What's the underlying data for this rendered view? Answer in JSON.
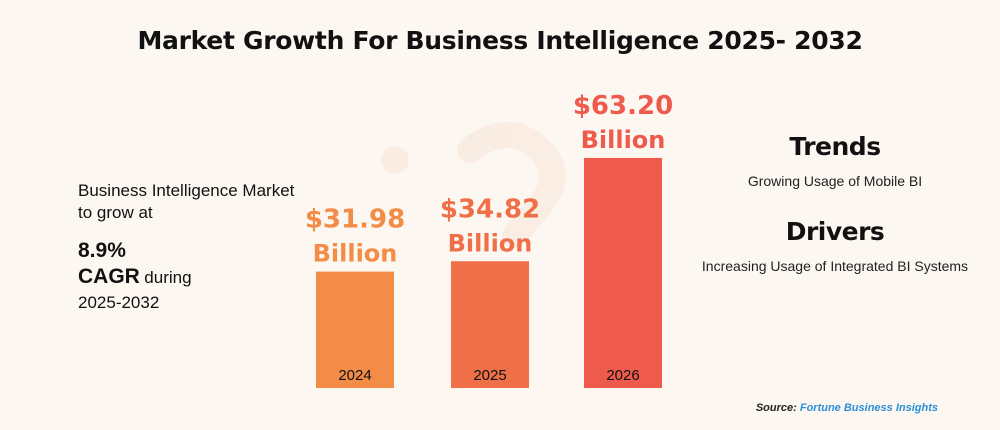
{
  "title": "Market Growth For Business Intelligence 2025- 2032",
  "left_panel": {
    "intro": "Business Intelligence Market to grow at",
    "cagr_value": "8.9%",
    "cagr_label": "CAGR",
    "during": "during",
    "period": "2025-2032"
  },
  "right_panel": {
    "trends_heading": "Trends",
    "trends_text": "Growing Usage of Mobile BI",
    "drivers_heading": "Drivers",
    "drivers_text": "Increasing Usage of Integrated BI Systems"
  },
  "source": {
    "label": "Source:",
    "name": "Fortune Business Insights"
  },
  "colors": {
    "background": "#fcf8f1",
    "bar_2024": "#f28c47",
    "bar_2025": "#ef7048",
    "bar_2026": "#ee5a4c",
    "source_link": "#2e8fd6"
  },
  "chart_data": {
    "type": "bar",
    "categories": [
      "2024",
      "2025",
      "2026"
    ],
    "values": [
      31.98,
      34.82,
      63.2
    ],
    "value_labels": [
      {
        "amount": "$31.98",
        "unit": "Billion"
      },
      {
        "amount": "$34.82",
        "unit": "Billion"
      },
      {
        "amount": "$63.20",
        "unit": "Billion"
      }
    ],
    "colors": [
      "#f28c47",
      "#ef7048",
      "#ee5a4c"
    ],
    "title": "Market Growth For Business Intelligence 2025- 2032",
    "xlabel": "",
    "ylabel": "",
    "grid": false
  }
}
